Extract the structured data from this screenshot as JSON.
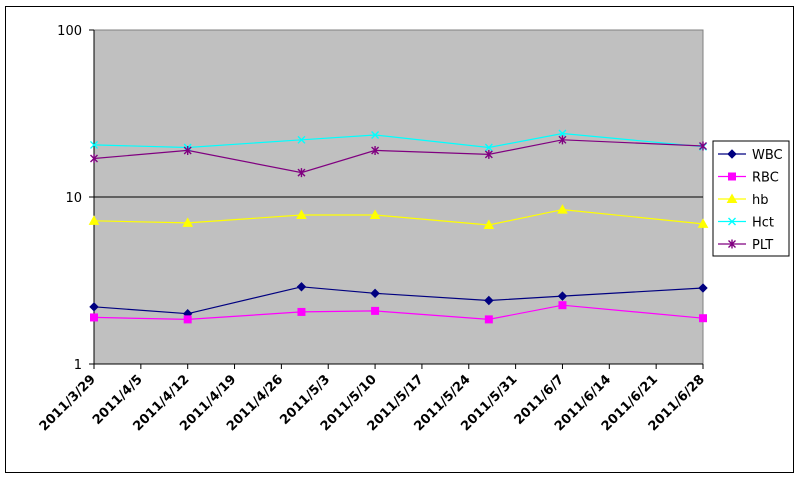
{
  "chart_data": {
    "type": "line",
    "title": "",
    "xlabel": "",
    "ylabel": "",
    "y_scale": "log",
    "ylim": [
      1,
      100
    ],
    "y_ticks": [
      1,
      10,
      100
    ],
    "y_tick_labels": [
      "1",
      "10",
      "100"
    ],
    "grid": "horizontal at decades",
    "plot_background": "#c0c0c0",
    "legend_position": "right",
    "x_tick_labels": [
      "2011/3/29",
      "2011/4/5",
      "2011/4/12",
      "2011/4/19",
      "2011/4/26",
      "2011/5/3",
      "2011/5/10",
      "2011/5/17",
      "2011/5/24",
      "2011/5/31",
      "2011/6/7",
      "2011/6/14",
      "2011/6/21",
      "2011/6/28"
    ],
    "x_range": [
      "2011/3/29",
      "2011/6/28"
    ],
    "x": [
      "2011/3/29",
      "2011/4/12",
      "2011/4/29",
      "2011/5/10",
      "2011/5/27",
      "2011/6/7",
      "2011/6/28"
    ],
    "series": [
      {
        "name": "WBC",
        "color": "#000080",
        "marker": "diamond",
        "values": [
          2.2,
          2.0,
          2.9,
          2.65,
          2.4,
          2.55,
          2.85
        ]
      },
      {
        "name": "RBC",
        "color": "#ff00ff",
        "marker": "square",
        "values": [
          1.9,
          1.85,
          2.05,
          2.08,
          1.85,
          2.25,
          1.88
        ]
      },
      {
        "name": "hb",
        "color": "#ffff00",
        "marker": "triangle",
        "values": [
          7.2,
          7.0,
          7.8,
          7.8,
          6.8,
          8.4,
          6.9
        ]
      },
      {
        "name": "Hct",
        "color": "#00ffff",
        "marker": "x",
        "values": [
          20.5,
          19.8,
          22.0,
          23.5,
          19.8,
          24.0,
          20.0
        ]
      },
      {
        "name": "PLT",
        "color": "#800080",
        "marker": "star",
        "values": [
          17.0,
          19.0,
          14.0,
          19.0,
          18.0,
          22.0,
          20.2
        ]
      }
    ]
  }
}
